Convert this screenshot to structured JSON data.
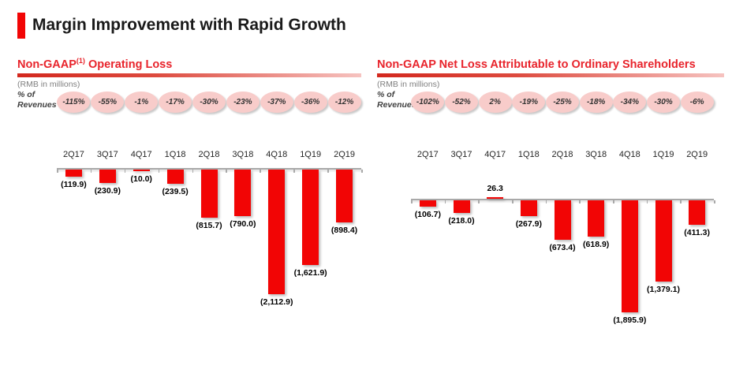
{
  "page": {
    "title": "Margin Improvement with Rapid Growth"
  },
  "colors": {
    "accent_bar": "#f20505",
    "section_title_red": "#e8242c",
    "bar_red": "#f20505",
    "ellipse_fill": "#f8ccca",
    "axis_gray": "#a9a9a9"
  },
  "chart_data": [
    {
      "type": "bar",
      "title": "Non-GAAP(1) Operating Loss",
      "title_main": "Non-GAAP",
      "title_footnote": "(1)",
      "title_suffix": " Operating Loss",
      "units_label": "(RMB in millions)",
      "pct_row_label_line1": "% of",
      "pct_row_label_line2": "Revenues",
      "pct_of_revenues": [
        "-115%",
        "-55%",
        "-1%",
        "-17%",
        "-30%",
        "-23%",
        "-37%",
        "-36%",
        "-12%"
      ],
      "categories": [
        "2Q17",
        "3Q17",
        "4Q17",
        "1Q18",
        "2Q18",
        "3Q18",
        "4Q18",
        "1Q19",
        "2Q19"
      ],
      "values": [
        -119.9,
        -230.9,
        -10.0,
        -239.5,
        -815.7,
        -790.0,
        -2112.9,
        -1621.9,
        -898.4
      ],
      "data_labels": [
        "(119.9)",
        "(230.9)",
        "(10.0)",
        "(239.5)",
        "(815.7)",
        "(790.0)",
        "(2,112.9)",
        "(1,621.9)",
        "(898.4)"
      ],
      "bar_color": "#f20505",
      "xlabel": "",
      "ylabel": "",
      "ylim": [
        -2200,
        100
      ],
      "grid": false,
      "legend": false
    },
    {
      "type": "bar",
      "title": "Non-GAAP Net Loss Attributable to Ordinary Shareholders",
      "title_main": "Non-GAAP Net Loss Attributable to Ordinary Shareholders",
      "title_footnote": "",
      "title_suffix": "",
      "units_label": "(RMB in millions)",
      "pct_row_label_line1": "% of",
      "pct_row_label_line2": "Revenues",
      "pct_of_revenues": [
        "-102%",
        "-52%",
        "2%",
        "-19%",
        "-25%",
        "-18%",
        "-34%",
        "-30%",
        "-6%"
      ],
      "categories": [
        "2Q17",
        "3Q17",
        "4Q17",
        "1Q18",
        "2Q18",
        "3Q18",
        "4Q18",
        "1Q19",
        "2Q19"
      ],
      "values": [
        -106.7,
        -218.0,
        26.3,
        -267.9,
        -673.4,
        -618.9,
        -1895.9,
        -1379.1,
        -411.3
      ],
      "data_labels": [
        "(106.7)",
        "(218.0)",
        "26.3",
        "(267.9)",
        "(673.4)",
        "(618.9)",
        "(1,895.9)",
        "(1,379.1)",
        "(411.3)"
      ],
      "bar_color": "#f20505",
      "xlabel": "",
      "ylabel": "",
      "ylim": [
        -2000,
        100
      ],
      "grid": false,
      "legend": false
    }
  ]
}
